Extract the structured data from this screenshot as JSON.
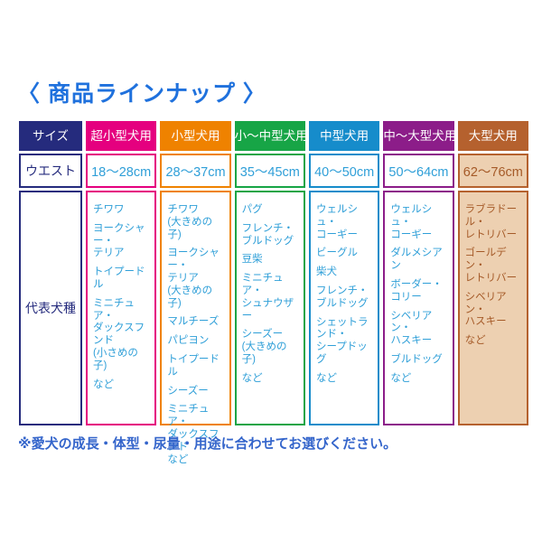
{
  "page": {
    "title": "〈 商品ラインナップ 〉",
    "footnote": "※愛犬の成長・体型・尿量・用途に合わせてお選びください。"
  },
  "colors": {
    "size_header_bg": "#252b7d",
    "value_text_blue": "#2f9fd8",
    "title_blue": "#1f71dd",
    "footnote_blue": "#3465cb"
  },
  "table": {
    "row_headers": {
      "size": "サイズ",
      "waist": "ウエスト",
      "breeds": "代表犬種"
    },
    "columns": [
      {
        "label": "超小型犬用",
        "color": "#e5007f",
        "bg": "#ffffff",
        "text": "#2f9fd8",
        "waist": "18〜28cm",
        "breeds": [
          "チワワ",
          "ヨークシャー・\nテリア",
          "トイプードル",
          "ミニチュア・\nダックスフンド\n(小さめの子)",
          "など"
        ]
      },
      {
        "label": "小型犬用",
        "color": "#ef8200",
        "bg": "#ffffff",
        "text": "#2f9fd8",
        "waist": "28〜37cm",
        "breeds": [
          "チワワ\n(大きめの子)",
          "ヨークシャー・\nテリア\n(大きめの子)",
          "マルチーズ",
          "パピヨン",
          "トイプードル",
          "シーズー",
          "ミニチュア・\nダックスフンド\nなど"
        ]
      },
      {
        "label": "小〜中型犬用",
        "color": "#17a546",
        "bg": "#ffffff",
        "text": "#2f9fd8",
        "waist": "35〜45cm",
        "breeds": [
          "パグ",
          "フレンチ・\nブルドッグ",
          "豆柴",
          "ミニチュア・\nシュナウザー",
          "シーズー\n(大きめの子)",
          "など"
        ]
      },
      {
        "label": "中型犬用",
        "color": "#168ccb",
        "bg": "#ffffff",
        "text": "#2f9fd8",
        "waist": "40〜50cm",
        "breeds": [
          "ウェルシュ・\nコーギー",
          "ビーグル",
          "柴犬",
          "フレンチ・\nブルドッグ",
          "シェットランド・\nシープドッグ",
          "など"
        ]
      },
      {
        "label": "中〜大型犬用",
        "color": "#8c1d89",
        "bg": "#ffffff",
        "text": "#2f9fd8",
        "waist": "50〜64cm",
        "breeds": [
          "ウェルシュ・\nコーギー",
          "ダルメシアン",
          "ボーダー・\nコリー",
          "シベリアン・\nハスキー",
          "ブルドッグ",
          "など"
        ]
      },
      {
        "label": "大型犬用",
        "color": "#b5612e",
        "bg": "#edd0b1",
        "text": "#a55a28",
        "waist": "62〜76cm",
        "breeds": [
          "ラブラドール・\nレトリバー",
          "ゴールデン・\nレトリバー",
          "シベリアン・\nハスキー",
          "など"
        ]
      }
    ]
  }
}
